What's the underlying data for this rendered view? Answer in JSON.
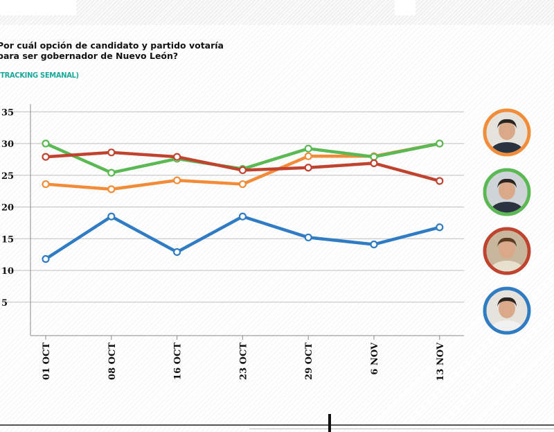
{
  "question": "Por cuál opción de candidato y partido votaría para ser gobernador de Nuevo León?",
  "subtitle": "(TRACKING SEMANAL)",
  "chart_data": {
    "type": "line",
    "title": "Por cuál opción de candidato y partido votaría para ser gobernador de Nuevo León?",
    "subtitle": "(TRACKING SEMANAL)",
    "x": [
      "01 OCT",
      "08 OCT",
      "16 OCT",
      "23 OCT",
      "29 OCT",
      "6 NOV",
      "13 NOV"
    ],
    "ylim": [
      0,
      35
    ],
    "yticks": [
      5,
      10,
      15,
      20,
      25,
      30,
      35
    ],
    "grid": true,
    "series": [
      {
        "color": "#f28c38",
        "values": [
          23.6,
          22.8,
          24.2,
          23.6,
          28.0,
          28.0,
          30.0
        ]
      },
      {
        "color": "#5bb954",
        "values": [
          30.0,
          25.4,
          27.6,
          26.0,
          29.2,
          27.9,
          30.0
        ]
      },
      {
        "color": "#c0432f",
        "values": [
          27.9,
          28.6,
          27.9,
          25.8,
          26.2,
          26.9,
          24.1
        ]
      },
      {
        "color": "#2f7cc4",
        "values": [
          11.8,
          18.5,
          12.9,
          18.5,
          15.2,
          14.1,
          16.8
        ]
      }
    ],
    "legend": "right",
    "legend_items": [
      {
        "color": "#f28c38",
        "icon": "candidate-photo-icon"
      },
      {
        "color": "#5bb954",
        "icon": "candidate-photo-icon"
      },
      {
        "color": "#c0432f",
        "icon": "candidate-photo-icon"
      },
      {
        "color": "#2f7cc4",
        "icon": "candidate-photo-icon"
      }
    ]
  }
}
